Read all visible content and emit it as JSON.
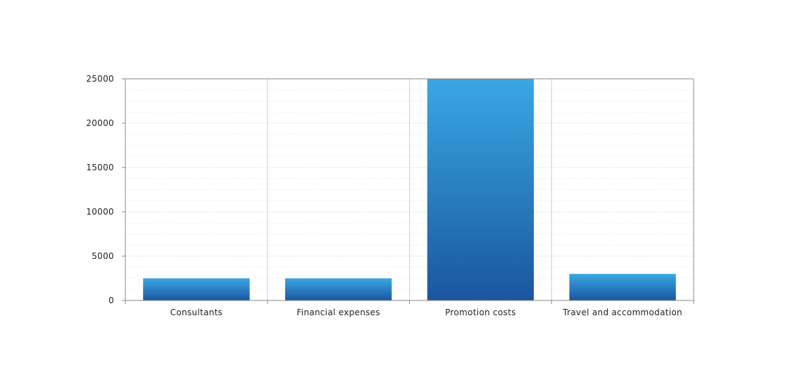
{
  "chart_data": {
    "type": "bar",
    "categories": [
      "Consultants",
      "Financial expenses",
      "Promotion costs",
      "Travel and accommodation"
    ],
    "values": [
      2500,
      2500,
      25000,
      3000
    ],
    "title": "",
    "xlabel": "",
    "ylabel": "",
    "ylim": [
      0,
      25000
    ],
    "yticks": [
      0,
      5000,
      10000,
      15000,
      20000,
      25000
    ],
    "grid": true,
    "legend": "none",
    "colors": {
      "bar_top": "#3aa7e3",
      "bar_bottom": "#1a56a0",
      "axis": "#8a8a8a",
      "grid_major": "#d3dde2",
      "grid_minor": "#eaeef0",
      "category_separator": "#b9d6e0"
    }
  }
}
